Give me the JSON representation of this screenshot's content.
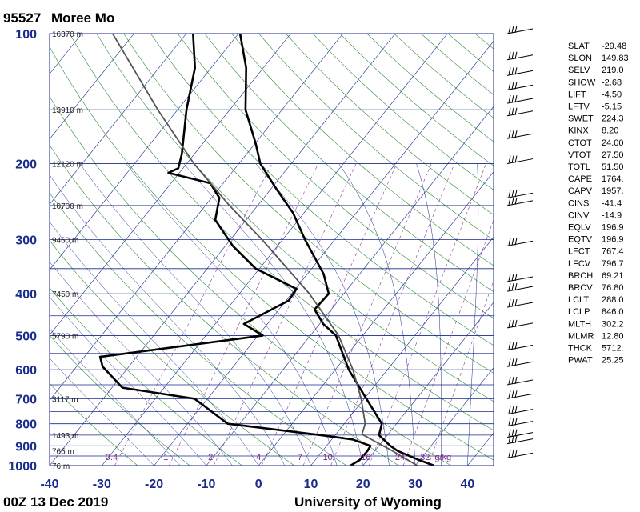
{
  "header": {
    "station_id": "95527",
    "station_name": "Moree Mo"
  },
  "footer": {
    "time": "00Z 13 Dec 2019",
    "source": "University of Wyoming"
  },
  "colors": {
    "isobar": "#1a2a8a",
    "isotherm": "#1a2a8a",
    "dry_adiabat": "#2e8b3a",
    "moist_adiabat": "#1a2a8a",
    "mixing_ratio": "#8b3a9b",
    "sounding": "#000000",
    "parcel": "#555555",
    "frame": "#1a2a8a"
  },
  "wind_barbs": [
    {
      "pressure": 100,
      "icon": "wind-barb-icon"
    },
    {
      "pressure": 115,
      "icon": "wind-barb-icon"
    },
    {
      "pressure": 125,
      "icon": "wind-barb-icon"
    },
    {
      "pressure": 135,
      "icon": "wind-barb-icon"
    },
    {
      "pressure": 145,
      "icon": "wind-barb-icon"
    },
    {
      "pressure": 155,
      "icon": "wind-barb-icon"
    },
    {
      "pressure": 175,
      "icon": "wind-barb-icon"
    },
    {
      "pressure": 200,
      "icon": "wind-barb-icon"
    },
    {
      "pressure": 240,
      "icon": "wind-barb-icon"
    },
    {
      "pressure": 250,
      "icon": "wind-barb-icon"
    },
    {
      "pressure": 310,
      "icon": "wind-barb-icon"
    },
    {
      "pressure": 375,
      "icon": "wind-barb-icon"
    },
    {
      "pressure": 395,
      "icon": "wind-barb-icon"
    },
    {
      "pressure": 430,
      "icon": "wind-barb-icon"
    },
    {
      "pressure": 480,
      "icon": "wind-barb-icon"
    },
    {
      "pressure": 540,
      "icon": "wind-barb-icon"
    },
    {
      "pressure": 590,
      "icon": "wind-barb-icon"
    },
    {
      "pressure": 650,
      "icon": "wind-barb-icon"
    },
    {
      "pressure": 700,
      "icon": "wind-barb-icon"
    },
    {
      "pressure": 760,
      "icon": "wind-barb-icon"
    },
    {
      "pressure": 810,
      "icon": "wind-barb-icon"
    },
    {
      "pressure": 860,
      "icon": "wind-barb-icon"
    },
    {
      "pressure": 890,
      "icon": "wind-barb-icon"
    },
    {
      "pressure": 960,
      "icon": "wind-barb-icon"
    }
  ],
  "indices": [
    {
      "key": "SLAT",
      "value": "-29.48"
    },
    {
      "key": "SLON",
      "value": "149.83"
    },
    {
      "key": "SELV",
      "value": "219.0"
    },
    {
      "key": "SHOW",
      "value": "-2.68"
    },
    {
      "key": "LIFT",
      "value": "-4.50"
    },
    {
      "key": "LFTV",
      "value": "-5.15"
    },
    {
      "key": "SWET",
      "value": "224.3"
    },
    {
      "key": "KINX",
      "value": "8.20"
    },
    {
      "key": "CTOT",
      "value": "24.00"
    },
    {
      "key": "VTOT",
      "value": "27.50"
    },
    {
      "key": "TOTL",
      "value": "51.50"
    },
    {
      "key": "CAPE",
      "value": "1764."
    },
    {
      "key": "CAPV",
      "value": "1957."
    },
    {
      "key": "CINS",
      "value": "-41.4"
    },
    {
      "key": "CINV",
      "value": "-14.9"
    },
    {
      "key": "EQLV",
      "value": "196.9"
    },
    {
      "key": "EQTV",
      "value": "196.9"
    },
    {
      "key": "LFCT",
      "value": "767.4"
    },
    {
      "key": "LFCV",
      "value": "796.7"
    },
    {
      "key": "BRCH",
      "value": "69.21"
    },
    {
      "key": "BRCV",
      "value": "76.80"
    },
    {
      "key": "LCLT",
      "value": "288.0"
    },
    {
      "key": "LCLP",
      "value": "846.0"
    },
    {
      "key": "MLTH",
      "value": "302.2"
    },
    {
      "key": "MLMR",
      "value": "12.80"
    },
    {
      "key": "THCK",
      "value": "5712."
    },
    {
      "key": "PWAT",
      "value": "25.25"
    }
  ],
  "chart_data": {
    "type": "line",
    "pressure_levels": [
      100,
      200,
      300,
      400,
      500,
      600,
      700,
      800,
      900,
      1000
    ],
    "pressure_tick_labels": [
      "100",
      "200",
      "300",
      "400",
      "500",
      "600",
      "700",
      "800",
      "900",
      "1000"
    ],
    "ylim": [
      100,
      1000
    ],
    "xlim": [
      -40,
      45
    ],
    "temperature_ticks": [
      -40,
      -30,
      -20,
      -10,
      0,
      10,
      20,
      30,
      40
    ],
    "temperature_tick_labels": [
      "-40",
      "-30",
      "-20",
      "-10",
      "0",
      "10",
      "20",
      "30",
      "40"
    ],
    "height_labels": [
      {
        "p": 100,
        "text": "16370 m"
      },
      {
        "p": 150,
        "text": "13910 m"
      },
      {
        "p": 200,
        "text": "12120 m"
      },
      {
        "p": 250,
        "text": "10700 m"
      },
      {
        "p": 300,
        "text": "9460 m"
      },
      {
        "p": 400,
        "text": "7450 m"
      },
      {
        "p": 500,
        "text": "5790 m"
      },
      {
        "p": 700,
        "text": "3117 m"
      },
      {
        "p": 850,
        "text": "1493 m"
      },
      {
        "p": 925,
        "text": "765 m"
      },
      {
        "p": 1000,
        "text": "76 m"
      }
    ],
    "mixing_ratio_lines": [
      {
        "w": 0.4,
        "label": "0.4"
      },
      {
        "w": 1,
        "label": "1"
      },
      {
        "w": 2,
        "label": "2"
      },
      {
        "w": 4,
        "label": "4"
      },
      {
        "w": 7,
        "label": "7"
      },
      {
        "w": 10,
        "label": "10"
      },
      {
        "w": 16,
        "label": "16"
      },
      {
        "w": 24,
        "label": "24"
      },
      {
        "w": 32,
        "label": "32"
      }
    ],
    "mixing_ratio_unit": "g/kg",
    "series": [
      {
        "id": "temperature",
        "points": [
          {
            "p": 1000,
            "t": 33.6
          },
          {
            "p": 970,
            "t": 29.8
          },
          {
            "p": 925,
            "t": 24.4
          },
          {
            "p": 900,
            "t": 22.2
          },
          {
            "p": 850,
            "t": 18.4
          },
          {
            "p": 800,
            "t": 17.2
          },
          {
            "p": 700,
            "t": 10.4
          },
          {
            "p": 600,
            "t": 2.6
          },
          {
            "p": 500,
            "t": -5.1
          },
          {
            "p": 470,
            "t": -9.3
          },
          {
            "p": 435,
            "t": -13.2
          },
          {
            "p": 400,
            "t": -12.9
          },
          {
            "p": 360,
            "t": -16.9
          },
          {
            "p": 300,
            "t": -25.7
          },
          {
            "p": 260,
            "t": -32.1
          },
          {
            "p": 230,
            "t": -38.7
          },
          {
            "p": 200,
            "t": -45.9
          },
          {
            "p": 180,
            "t": -49.8
          },
          {
            "p": 150,
            "t": -57.0
          },
          {
            "p": 120,
            "t": -63.3
          },
          {
            "p": 100,
            "t": -69.7
          }
        ]
      },
      {
        "id": "dewpoint",
        "points": [
          {
            "p": 1000,
            "t": 17.6
          },
          {
            "p": 970,
            "t": 18.5
          },
          {
            "p": 925,
            "t": 18.6
          },
          {
            "p": 900,
            "t": 18.4
          },
          {
            "p": 870,
            "t": 14.0
          },
          {
            "p": 850,
            "t": 7.3
          },
          {
            "p": 800,
            "t": -12.3
          },
          {
            "p": 700,
            "t": -22.5
          },
          {
            "p": 660,
            "t": -38.0
          },
          {
            "p": 590,
            "t": -45.0
          },
          {
            "p": 560,
            "t": -47.0
          },
          {
            "p": 500,
            "t": -19.1
          },
          {
            "p": 470,
            "t": -24.5
          },
          {
            "p": 415,
            "t": -19.5
          },
          {
            "p": 390,
            "t": -19.8
          },
          {
            "p": 350,
            "t": -30.7
          },
          {
            "p": 310,
            "t": -38.6
          },
          {
            "p": 270,
            "t": -45.9
          },
          {
            "p": 240,
            "t": -48.5
          },
          {
            "p": 222,
            "t": -52.5
          },
          {
            "p": 210,
            "t": -62.1
          },
          {
            "p": 205,
            "t": -60.9
          },
          {
            "p": 190,
            "t": -62.4
          },
          {
            "p": 150,
            "t": -68.3
          },
          {
            "p": 120,
            "t": -73.1
          },
          {
            "p": 100,
            "t": -78.7
          }
        ]
      },
      {
        "id": "parcel",
        "points": [
          {
            "p": 1000,
            "t": 30.4
          },
          {
            "p": 920,
            "t": 22.9
          },
          {
            "p": 846,
            "t": 15.0
          },
          {
            "p": 800,
            "t": 14.0
          },
          {
            "p": 700,
            "t": 9.4
          },
          {
            "p": 600,
            "t": 3.4
          },
          {
            "p": 500,
            "t": -4.6
          },
          {
            "p": 400,
            "t": -16.6
          },
          {
            "p": 300,
            "t": -33.9
          },
          {
            "p": 250,
            "t": -45.4
          },
          {
            "p": 200,
            "t": -58.6
          },
          {
            "p": 150,
            "t": -73.8
          },
          {
            "p": 100,
            "t": -94.1
          }
        ]
      }
    ],
    "grid": true
  }
}
